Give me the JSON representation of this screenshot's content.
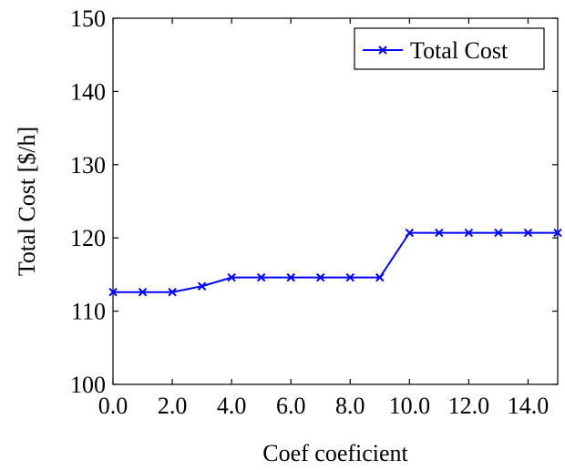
{
  "chart_data": {
    "type": "line",
    "title": "",
    "xlabel": "Coef coeficient",
    "ylabel": "Total Cost [$/h]",
    "xlim": [
      0,
      15
    ],
    "ylim": [
      100,
      150
    ],
    "x_ticks": [
      0,
      2,
      4,
      6,
      8,
      10,
      12,
      14
    ],
    "x_tick_labels": [
      "0.0",
      "2.0",
      "4.0",
      "6.0",
      "8.0",
      "10.0",
      "12.0",
      "14.0"
    ],
    "y_ticks": [
      100,
      110,
      120,
      130,
      140,
      150
    ],
    "y_tick_labels": [
      "100",
      "110",
      "120",
      "130",
      "140",
      "150"
    ],
    "grid": false,
    "legend_position": "top-right",
    "series": [
      {
        "name": "Total Cost",
        "color": "#0000ff",
        "marker": "x",
        "x": [
          0,
          1,
          2,
          3,
          4,
          5,
          6,
          7,
          8,
          9,
          10,
          11,
          12,
          13,
          14,
          15
        ],
        "y": [
          112.6,
          112.6,
          112.6,
          113.4,
          114.6,
          114.6,
          114.6,
          114.6,
          114.6,
          114.6,
          120.7,
          120.7,
          120.7,
          120.7,
          120.7,
          120.7
        ]
      }
    ]
  }
}
